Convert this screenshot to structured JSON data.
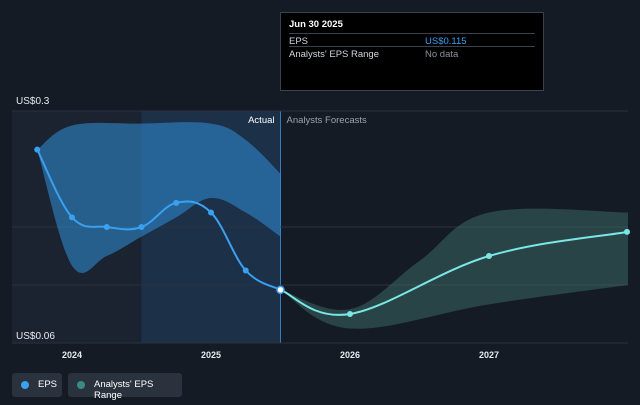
{
  "chart_data": {
    "type": "line",
    "ylim": [
      0.06,
      0.3
    ],
    "y_tick_labels": [
      "US$0.3",
      "US$0.06"
    ],
    "x_tick_labels": [
      {
        "label": "2024",
        "x": 2024.0
      },
      {
        "label": "2025",
        "x": 2025.0
      },
      {
        "label": "2026",
        "x": 2026.0
      },
      {
        "label": "2027",
        "x": 2027.0
      }
    ],
    "divider_x": 2025.5,
    "region_labels": {
      "actual": "Actual",
      "forecast": "Analysts Forecasts"
    },
    "series": [
      {
        "name": "EPS",
        "color": "#3aa0f0",
        "points": [
          {
            "x": 2023.75,
            "y": 0.26
          },
          {
            "x": 2024.0,
            "y": 0.19
          },
          {
            "x": 2024.25,
            "y": 0.18
          },
          {
            "x": 2024.5,
            "y": 0.18
          },
          {
            "x": 2024.75,
            "y": 0.205
          },
          {
            "x": 2025.0,
            "y": 0.195
          },
          {
            "x": 2025.25,
            "y": 0.135
          },
          {
            "x": 2025.5,
            "y": 0.115
          }
        ]
      },
      {
        "name": "EPS forecast",
        "color": "#7ae6e6",
        "points": [
          {
            "x": 2025.5,
            "y": 0.115
          },
          {
            "x": 2026.0,
            "y": 0.09
          },
          {
            "x": 2027.0,
            "y": 0.15
          },
          {
            "x": 2028.0,
            "y": 0.175
          }
        ]
      }
    ],
    "ranges": [
      {
        "name": "Analysts' EPS Range (past)",
        "color": "#2f8fd8",
        "upper": [
          {
            "x": 2023.75,
            "y": 0.26
          },
          {
            "x": 2024.0,
            "y": 0.285
          },
          {
            "x": 2024.5,
            "y": 0.287
          },
          {
            "x": 2025.0,
            "y": 0.287
          },
          {
            "x": 2025.25,
            "y": 0.27
          },
          {
            "x": 2025.5,
            "y": 0.235
          }
        ],
        "lower": [
          {
            "x": 2025.5,
            "y": 0.17
          },
          {
            "x": 2025.25,
            "y": 0.195
          },
          {
            "x": 2025.0,
            "y": 0.21
          },
          {
            "x": 2024.75,
            "y": 0.19
          },
          {
            "x": 2024.5,
            "y": 0.17
          },
          {
            "x": 2024.25,
            "y": 0.15
          },
          {
            "x": 2024.0,
            "y": 0.14
          },
          {
            "x": 2023.75,
            "y": 0.26
          }
        ]
      },
      {
        "name": "Analysts' EPS Range (forecast)",
        "color": "#3d6e68",
        "upper": [
          {
            "x": 2025.5,
            "y": 0.115
          },
          {
            "x": 2026.0,
            "y": 0.095
          },
          {
            "x": 2026.5,
            "y": 0.145
          },
          {
            "x": 2027.0,
            "y": 0.195
          },
          {
            "x": 2028.0,
            "y": 0.195
          }
        ],
        "lower": [
          {
            "x": 2028.0,
            "y": 0.12
          },
          {
            "x": 2027.0,
            "y": 0.1
          },
          {
            "x": 2026.0,
            "y": 0.075
          },
          {
            "x": 2025.5,
            "y": 0.115
          }
        ]
      }
    ],
    "hover_x": 2025.5
  },
  "tooltip": {
    "title": "Jun 30 2025",
    "rows": [
      {
        "label": "EPS",
        "value": "US$0.115",
        "value_color": "#3aa0f0"
      },
      {
        "label": "Analysts' EPS Range",
        "value": "No data",
        "value_color": "#8a939e"
      }
    ]
  },
  "legend": [
    {
      "label": "EPS",
      "color": "#3aa0f0"
    },
    {
      "label": "Analysts' EPS Range",
      "color": "#3d8a86"
    }
  ]
}
